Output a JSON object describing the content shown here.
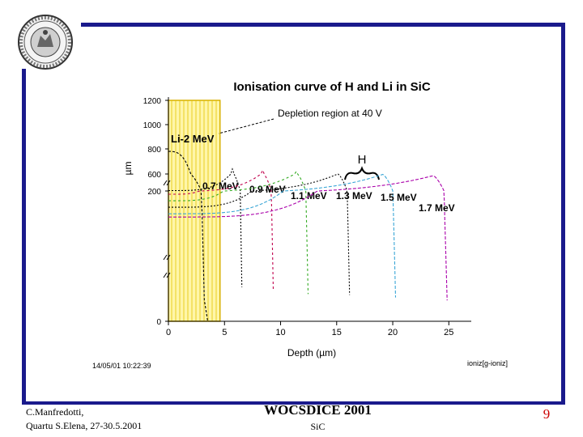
{
  "footer": {
    "author_line1": "C.Manfredotti,",
    "author_line2": "Quartu S.Elena, 27-30.5.2001",
    "conference": "WOCSDICE 2001",
    "topic": "SiC",
    "page_number": "9"
  },
  "colors": {
    "frame": "#1a1a8c",
    "page_number": "#cc0000",
    "depletion_fill": "#fff59a",
    "depletion_border": "#d8b000"
  },
  "logo": {
    "icon": "university-seal-icon"
  },
  "chart_data": {
    "type": "line",
    "title": "Ionisation curve of H and Li  in SiC",
    "xlabel": "Depth (µm)",
    "ylabel": "µm",
    "xlim": [
      0,
      27
    ],
    "x_ticks": [
      "0",
      "5",
      "10",
      "15",
      "20",
      "25"
    ],
    "y_ticks": [
      "1200",
      "1000",
      "800",
      "600",
      "200",
      "0"
    ],
    "y_tick_values": [
      1200,
      1000,
      800,
      600,
      200,
      0
    ],
    "timestamp": "14/05/01 10:22:39",
    "file_label": "ioniz[g-ioniz]",
    "depletion_region": {
      "x_start": 0,
      "x_end": 4.6,
      "label": "Depletion region at 40 V"
    },
    "group_label": "H",
    "series": [
      {
        "name": "Li-2 MeV",
        "color": "#000000",
        "dash": "3,2",
        "x_peak": 3.3,
        "y_start": 780,
        "y_peak": 160,
        "width": 0.6
      },
      {
        "name": "0.7 MeV",
        "color": "#000000",
        "dash": "2,2",
        "x_peak": 5.7,
        "y_start": 210,
        "y_peak": 640,
        "width": 0.9
      },
      {
        "name": "0.9 MeV",
        "color": "#c0004c",
        "dash": "3,3",
        "x_peak": 8.4,
        "y_start": 195,
        "y_peak": 630,
        "width": 1.0
      },
      {
        "name": "1.1 MeV",
        "color": "#33aa22",
        "dash": "3,3",
        "x_peak": 11.4,
        "y_start": 185,
        "y_peak": 620,
        "width": 1.1
      },
      {
        "name": "1.3 MeV",
        "color": "#000000",
        "dash": "2,2",
        "x_peak": 15.1,
        "y_start": 175,
        "y_peak": 600,
        "width": 1.1
      },
      {
        "name": "1.5 MeV",
        "color": "#3aa6d6",
        "dash": "4,2",
        "x_peak": 19.1,
        "y_start": 165,
        "y_peak": 590,
        "width": 1.2
      },
      {
        "name": "1.7 MeV",
        "color": "#aa00aa",
        "dash": "4,2",
        "x_peak": 23.6,
        "y_start": 160,
        "y_peak": 560,
        "width": 1.3
      }
    ]
  }
}
